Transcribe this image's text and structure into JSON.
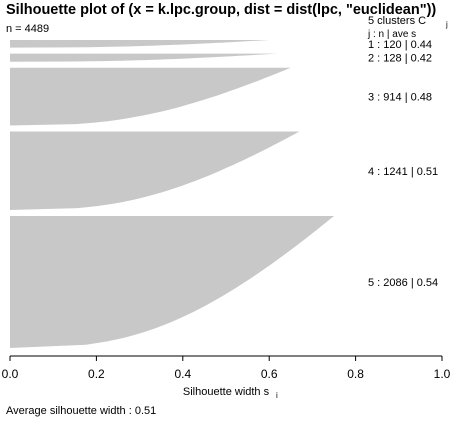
{
  "chart_data": {
    "type": "bar",
    "title": "Silhouette plot of (x = k.lpc.group, dist = dist(lpc, \"euclidean\"))",
    "n_label": "n = 4489",
    "xlabel": "Silhouette width s",
    "xlabel_sub": "i",
    "xlim": [
      0,
      1
    ],
    "x_ticks": [
      "0.0",
      "0.2",
      "0.4",
      "0.6",
      "0.8",
      "1.0"
    ],
    "x_tick_values": [
      0,
      0.2,
      0.4,
      0.6,
      0.8,
      1.0
    ],
    "legend_header": "5  clusters  C",
    "legend_header_sub": "j",
    "legend_cols": "j :  n  | ave    s",
    "clusters": [
      {
        "j": 1,
        "n": 120,
        "ave": 0.44,
        "max": 0.6,
        "label": "1 :   120  |  0.44"
      },
      {
        "j": 2,
        "n": 128,
        "ave": 0.42,
        "max": 0.62,
        "label": "2 :   128  |  0.42"
      },
      {
        "j": 3,
        "n": 914,
        "ave": 0.48,
        "max": 0.65,
        "label": "3 :   914  |  0.48"
      },
      {
        "j": 4,
        "n": 1241,
        "ave": 0.51,
        "max": 0.67,
        "label": "4 :   1241  |  0.51"
      },
      {
        "j": 5,
        "n": 2086,
        "ave": 0.54,
        "max": 0.75,
        "label": "5 :   2086  |  0.54"
      }
    ],
    "average_label": "Average silhouette width :  0.51",
    "average": 0.51,
    "bar_color": "#c8c8c8"
  }
}
